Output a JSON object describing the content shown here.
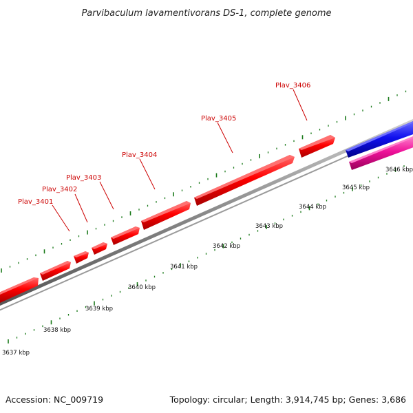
{
  "title": "Parvibaculum lavamentivorans DS-1, complete genome",
  "footer": {
    "accession": "Accession: NC_009719",
    "summary": "Topology: circular; Length: 3,914,745 bp; Genes: 3,686"
  },
  "colors": {
    "forward_gene": "#ff0000",
    "blue_feature": "#1010ee",
    "pink_feature": "#ee1199",
    "backbone": "#888888",
    "tick": "#1a7a1a",
    "label": "#cc0000"
  },
  "gene_labels": [
    {
      "text": "Plav_3401"
    },
    {
      "text": "Plav_3402"
    },
    {
      "text": "Plav_3403"
    },
    {
      "text": "Plav_3404"
    },
    {
      "text": "Plav_3405"
    },
    {
      "text": "Plav_3406"
    }
  ],
  "scale_labels": [
    "3637 kbp",
    "3638 kbp",
    "3639 kbp",
    "3640 kbp",
    "3641 kbp",
    "3642 kbp",
    "3643 kbp",
    "3644 kbp",
    "3645 kbp",
    "3646 kbp"
  ]
}
